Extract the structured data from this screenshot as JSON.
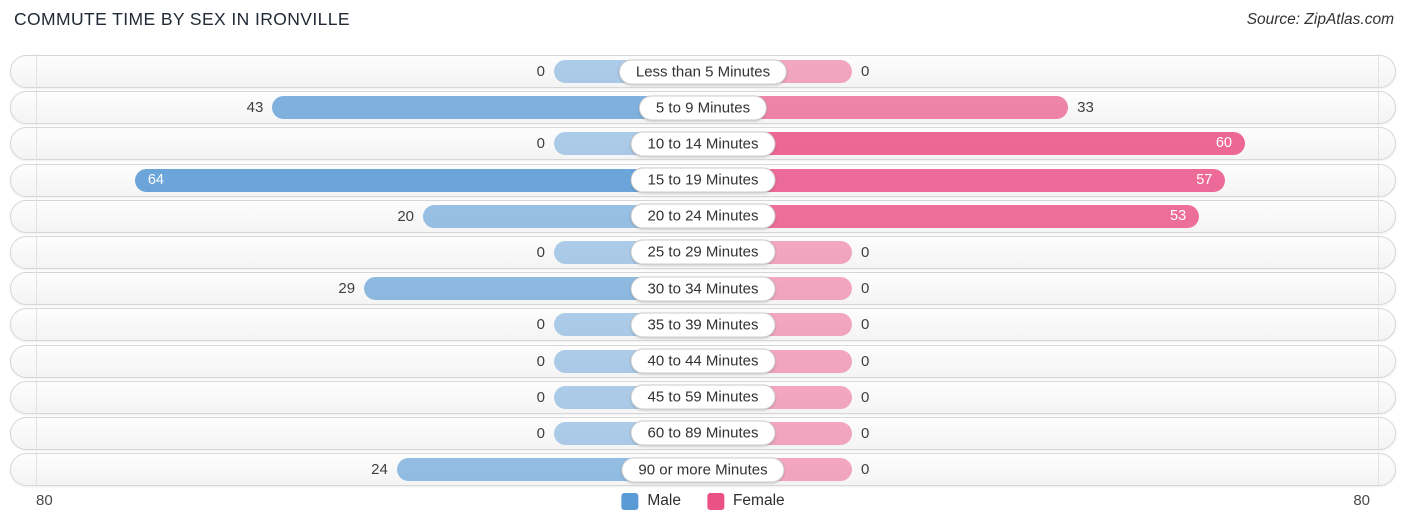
{
  "title": "COMMUTE TIME BY SEX IN IRONVILLE",
  "source": "Source: ZipAtlas.com",
  "axis": {
    "left_label": "80",
    "right_label": "80"
  },
  "legend": {
    "items": [
      {
        "label": "Male",
        "color": "#5b9bd5"
      },
      {
        "label": "Female",
        "color": "#ea5286"
      }
    ]
  },
  "chart_data": {
    "type": "bar",
    "variant": "diverging-horizontal",
    "title": "COMMUTE TIME BY SEX IN IRONVILLE",
    "categories": [
      "Less than 5 Minutes",
      "5 to 9 Minutes",
      "10 to 14 Minutes",
      "15 to 19 Minutes",
      "20 to 24 Minutes",
      "25 to 29 Minutes",
      "30 to 34 Minutes",
      "35 to 39 Minutes",
      "40 to 44 Minutes",
      "45 to 59 Minutes",
      "60 to 89 Minutes",
      "90 or more Minutes"
    ],
    "series": [
      {
        "name": "Male",
        "color": "#5b9bd5",
        "side": "left",
        "values": [
          0,
          43,
          0,
          64,
          20,
          0,
          29,
          0,
          0,
          0,
          0,
          24
        ]
      },
      {
        "name": "Female",
        "color": "#ea5286",
        "side": "right",
        "values": [
          0,
          33,
          60,
          57,
          53,
          0,
          0,
          0,
          0,
          0,
          0,
          0
        ]
      }
    ],
    "xlim": [
      0,
      80
    ],
    "axis_tick_left": 80,
    "axis_tick_right": 80,
    "legend_position": "bottom",
    "grid": "edge-ticks-only"
  }
}
